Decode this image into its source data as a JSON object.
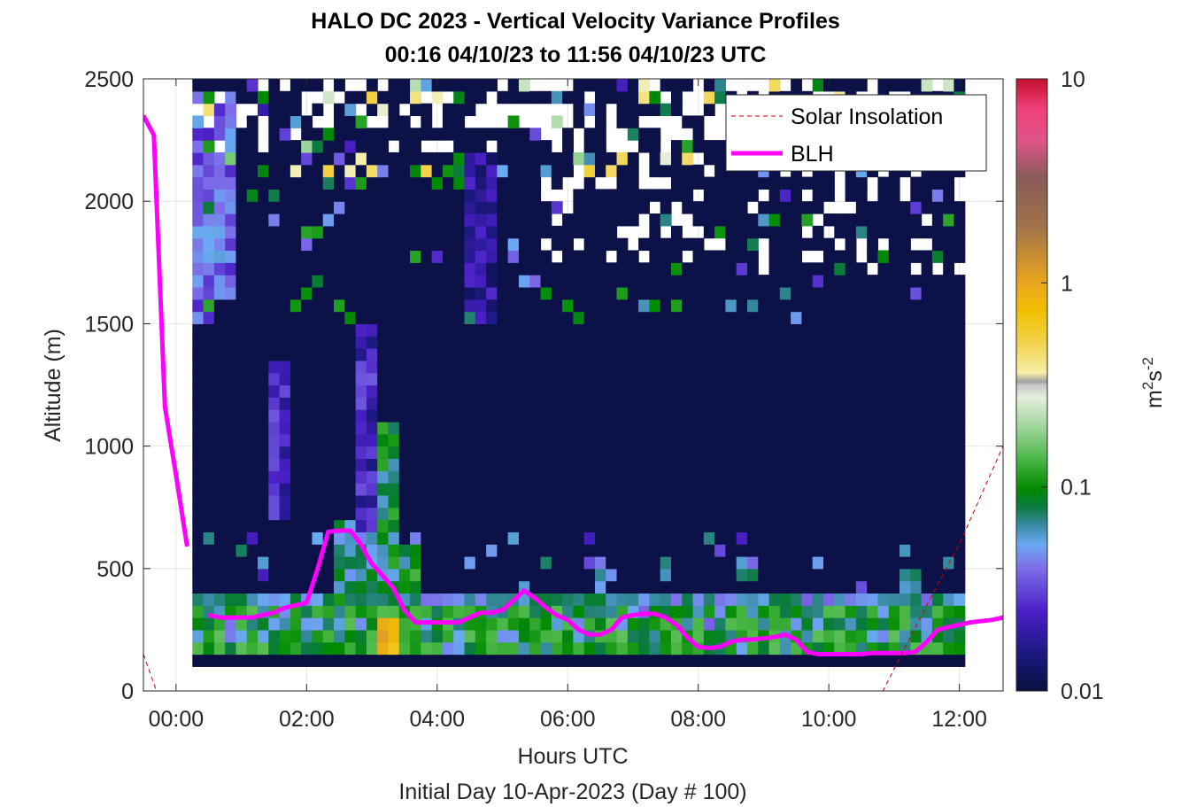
{
  "chart_data": {
    "type": "heatmap",
    "title": [
      "HALO DC 2023 - Vertical Velocity Variance Profiles",
      "00:16 04/10/23 to 11:56 04/10/23  UTC"
    ],
    "xlabel": "Hours UTC",
    "xlabel2": "Initial Day 10-Apr-2023 (Day # 100)",
    "ylabel": "Altitude (m)",
    "xlim": [
      -0.5,
      12.67
    ],
    "ylim": [
      0,
      2500
    ],
    "x_ticks": [
      0,
      2,
      4,
      6,
      8,
      10,
      12
    ],
    "x_tick_labels": [
      "00:00",
      "02:00",
      "04:00",
      "06:00",
      "08:00",
      "10:00",
      "12:00"
    ],
    "y_ticks": [
      0,
      500,
      1000,
      1500,
      2000,
      2500
    ],
    "y_tick_labels": [
      "0",
      "500",
      "1000",
      "1500",
      "2000",
      "2500"
    ],
    "grid": true,
    "legend": {
      "position": "top-right",
      "entries": [
        {
          "label": "Solar Insolation",
          "color": "#cc0000",
          "style": "dashed"
        },
        {
          "label": "BLH",
          "color": "#ff00ff",
          "style": "solid"
        }
      ]
    },
    "colorbar": {
      "label": "m²s⁻²",
      "scale": "log",
      "range": [
        0.01,
        10
      ],
      "ticks": [
        0.01,
        0.1,
        1,
        10
      ],
      "tick_labels": [
        "0.01",
        "0.1",
        "1",
        "10"
      ]
    },
    "heatmap_note": "Background variance ~0.01 m2s-2 (dark navy) for most cells; elevated values near the surface and in convective plumes.",
    "heatmap_features": [
      {
        "x_range": [
          0.25,
          0.55
        ],
        "alt_range": [
          1500,
          2450
        ],
        "value": 0.04
      },
      {
        "x_range": [
          0.55,
          0.85
        ],
        "alt_range": [
          1600,
          2450
        ],
        "value": 0.04
      },
      {
        "x_range": [
          1.35,
          1.65
        ],
        "alt_range": [
          700,
          1350
        ],
        "value": 0.025
      },
      {
        "x_range": [
          2.35,
          2.7
        ],
        "alt_range": [
          250,
          700
        ],
        "value": 0.08
      },
      {
        "x_range": [
          2.6,
          3.0
        ],
        "alt_range": [
          600,
          1500
        ],
        "value": 0.025
      },
      {
        "x_range": [
          2.7,
          3.05
        ],
        "alt_range": [
          150,
          650
        ],
        "value": 0.07
      },
      {
        "x_range": [
          3.05,
          3.35
        ],
        "alt_range": [
          150,
          1100
        ],
        "value": 0.09
      },
      {
        "x_range": [
          3.0,
          3.35
        ],
        "alt_range": [
          150,
          300
        ],
        "value": 0.8
      },
      {
        "x_range": [
          3.35,
          3.7
        ],
        "alt_range": [
          150,
          600
        ],
        "value": 0.1
      },
      {
        "x_range": [
          0.25,
          12.0
        ],
        "alt_range": [
          150,
          400
        ],
        "value": 0.06
      },
      {
        "x_range": [
          4.4,
          4.8
        ],
        "alt_range": [
          1500,
          2200
        ],
        "value": 0.02
      }
    ],
    "series": [
      {
        "name": "BLH",
        "segments": [
          {
            "x": [
              -0.5,
              -0.34,
              -0.17,
              0.0,
              0.17
            ],
            "y": [
              2350,
              2270,
              1160,
              880,
              590
            ]
          },
          {
            "x": [
              0.5,
              0.67,
              0.83,
              1.0,
              1.17,
              1.33,
              1.5,
              1.67,
              1.83,
              2.0,
              2.17,
              2.33,
              2.5,
              2.67,
              2.83,
              3.0,
              3.17,
              3.33,
              3.5,
              3.67,
              3.83,
              4.0,
              4.17,
              4.33,
              4.5,
              4.67,
              4.83,
              5.0,
              5.17,
              5.33,
              5.5,
              5.67,
              5.83,
              6.0,
              6.17,
              6.33,
              6.5,
              6.67,
              6.83,
              7.0,
              7.17,
              7.33,
              7.5,
              7.67,
              7.83,
              8.0,
              8.17,
              8.33,
              8.5,
              8.67,
              8.83,
              9.0,
              9.17,
              9.33,
              9.5,
              9.67,
              9.83,
              10.0,
              10.17,
              10.33,
              10.5,
              10.67,
              10.83,
              11.0,
              11.17,
              11.33,
              11.5,
              11.67,
              11.83,
              12.0,
              12.17,
              12.33,
              12.5,
              12.67
            ],
            "y": [
              310,
              300,
              300,
              300,
              300,
              310,
              320,
              340,
              350,
              360,
              500,
              650,
              655,
              655,
              600,
              520,
              470,
              420,
              330,
              280,
              280,
              280,
              280,
              280,
              300,
              320,
              320,
              330,
              370,
              410,
              380,
              340,
              310,
              290,
              250,
              230,
              230,
              250,
              300,
              310,
              315,
              315,
              300,
              270,
              220,
              180,
              175,
              180,
              200,
              210,
              210,
              215,
              220,
              230,
              210,
              160,
              150,
              150,
              150,
              150,
              150,
              155,
              155,
              155,
              155,
              160,
              200,
              250,
              260,
              270,
              280,
              285,
              290,
              300
            ]
          }
        ]
      },
      {
        "name": "Solar Insolation",
        "x": [
          -0.5,
          -0.3,
          10.83,
          11.5,
          12.0,
          12.67
        ],
        "y": [
          150,
          0,
          0,
          350,
          600,
          1000
        ]
      }
    ]
  }
}
